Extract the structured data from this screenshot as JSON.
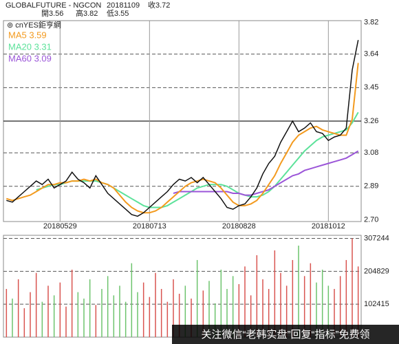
{
  "chart_data": [
    {
      "type": "line",
      "title": "GLOBALFUTURE - NGCON",
      "date": "20181109",
      "close": "收3.72",
      "open": "開3.56",
      "high": "高3.82",
      "low": "低3.55",
      "source": "⊚ cnYES鉅亨網",
      "categories": [
        null,
        null,
        null,
        null,
        null,
        null,
        null,
        null,
        null,
        "20180529",
        null,
        null,
        null,
        null,
        null,
        null,
        null,
        null,
        null,
        null,
        null,
        null,
        null,
        null,
        "20180713",
        null,
        null,
        null,
        null,
        null,
        null,
        null,
        null,
        null,
        null,
        null,
        null,
        null,
        null,
        "20180828",
        null,
        null,
        null,
        null,
        null,
        null,
        null,
        null,
        null,
        null,
        null,
        null,
        null,
        null,
        "20181012",
        null,
        null,
        null,
        null,
        null
      ],
      "series": [
        {
          "color": "#111111",
          "values": [
            2.81,
            2.8,
            2.83,
            2.86,
            2.89,
            2.92,
            2.9,
            2.93,
            2.88,
            2.9,
            2.92,
            2.97,
            2.93,
            2.91,
            2.88,
            2.95,
            2.9,
            2.85,
            2.82,
            2.79,
            2.76,
            2.73,
            2.72,
            2.74,
            2.77,
            2.8,
            2.83,
            2.86,
            2.9,
            2.93,
            2.92,
            2.94,
            2.91,
            2.94,
            2.9,
            2.86,
            2.82,
            2.77,
            2.76,
            2.78,
            2.79,
            2.83,
            2.88,
            2.96,
            3.02,
            3.06,
            3.14,
            3.2,
            3.26,
            3.2,
            3.22,
            3.25,
            3.2,
            3.19,
            3.15,
            3.17,
            3.18,
            3.22,
            3.55,
            3.72
          ]
        },
        {
          "name": "MA5 3.59",
          "color": "#f39a1e",
          "values": [
            2.82,
            2.81,
            2.82,
            2.83,
            2.84,
            2.86,
            2.88,
            2.9,
            2.9,
            2.91,
            2.91,
            2.92,
            2.92,
            2.93,
            2.92,
            2.93,
            2.91,
            2.9,
            2.88,
            2.84,
            2.8,
            2.77,
            2.75,
            2.74,
            2.74,
            2.75,
            2.77,
            2.8,
            2.83,
            2.86,
            2.89,
            2.91,
            2.92,
            2.93,
            2.92,
            2.91,
            2.88,
            2.84,
            2.8,
            2.78,
            2.78,
            2.79,
            2.81,
            2.85,
            2.9,
            2.95,
            3.02,
            3.08,
            3.14,
            3.18,
            3.2,
            3.22,
            3.23,
            3.21,
            3.2,
            3.19,
            3.18,
            3.18,
            3.27,
            3.59
          ]
        },
        {
          "name": "MA20 3.31",
          "color": "#5ce29a",
          "values": [
            null,
            null,
            null,
            null,
            null,
            2.87,
            2.88,
            2.89,
            2.9,
            2.9,
            2.91,
            2.92,
            2.92,
            2.92,
            2.92,
            2.92,
            2.91,
            2.9,
            2.88,
            2.86,
            2.84,
            2.82,
            2.8,
            2.78,
            2.77,
            2.77,
            2.77,
            2.78,
            2.8,
            2.82,
            2.84,
            2.86,
            2.88,
            2.89,
            2.9,
            2.9,
            2.9,
            2.89,
            2.87,
            2.85,
            2.84,
            2.83,
            2.83,
            2.84,
            2.86,
            2.89,
            2.93,
            2.97,
            3.01,
            3.05,
            3.09,
            3.12,
            3.15,
            3.17,
            3.18,
            3.19,
            3.2,
            3.21,
            3.25,
            3.31
          ]
        },
        {
          "name": "MA60 3.09",
          "color": "#9b55d8",
          "values": [
            null,
            null,
            null,
            null,
            null,
            null,
            null,
            null,
            null,
            null,
            null,
            null,
            null,
            null,
            null,
            null,
            null,
            null,
            null,
            null,
            null,
            null,
            null,
            null,
            null,
            null,
            null,
            null,
            2.85,
            2.86,
            2.86,
            2.86,
            2.86,
            2.86,
            2.86,
            2.86,
            2.86,
            2.86,
            2.85,
            2.85,
            2.84,
            2.84,
            2.85,
            2.86,
            2.87,
            2.89,
            2.91,
            2.93,
            2.95,
            2.96,
            2.98,
            2.99,
            3.0,
            3.01,
            3.02,
            3.03,
            3.04,
            3.05,
            3.07,
            3.09
          ]
        }
      ],
      "ylim": [
        2.69,
        3.83
      ],
      "yticks": [
        {
          "value": 2.7,
          "label": "2.70"
        },
        2.89,
        3.08,
        3.26,
        3.45,
        3.64,
        3.82
      ],
      "solid_gridline": 3.26
    },
    {
      "type": "bar",
      "values": [
        150000,
        120000,
        180000,
        90000,
        140000,
        200000,
        110000,
        160000,
        130000,
        170000,
        95000,
        210000,
        140000,
        120000,
        180000,
        100000,
        150000,
        190000,
        130000,
        160000,
        110000,
        230000,
        140000,
        170000,
        125000,
        200000,
        150000,
        110000,
        180000,
        135000,
        160000,
        120000,
        240000,
        145000,
        175000,
        105000,
        210000,
        150000,
        190000,
        165000,
        220000,
        130000,
        255000,
        180000,
        150000,
        270000,
        200000,
        160000,
        240000,
        285000,
        190000,
        230000,
        170000,
        210000,
        160000,
        150000,
        190000,
        240000,
        307244,
        220000
      ],
      "up_color": "#d9534f",
      "down_color": "#6cc36c",
      "ylim": [
        0,
        317000
      ],
      "yticks": [
        102415,
        204829,
        307244
      ]
    }
  ],
  "watermark": "关注微信“老韩实盘”回复“指标”免费领"
}
